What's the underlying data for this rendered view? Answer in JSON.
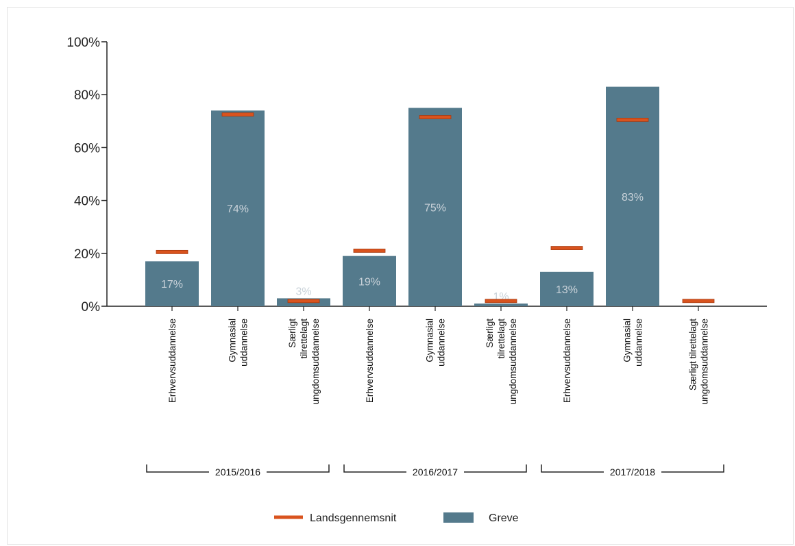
{
  "chart_data": {
    "type": "bar",
    "title": "",
    "xlabel": "",
    "ylabel": "",
    "ylim": [
      0,
      100
    ],
    "y_ticks": [
      "0%",
      "20%",
      "40%",
      "60%",
      "80%",
      "100%"
    ],
    "groups": [
      {
        "label": "2015/2016",
        "categories": [
          {
            "label_lines": [
              "Erhvervsuddannelse"
            ],
            "greve": 17,
            "greve_label": "17%",
            "landsgennemsnit": 20.5
          },
          {
            "label_lines": [
              "Gymnasial",
              "uddannelse"
            ],
            "greve": 74,
            "greve_label": "74%",
            "landsgennemsnit": 72.5
          },
          {
            "label_lines": [
              "Særligt",
              "tilrettelagt",
              "ungdomsuddannelse"
            ],
            "greve": 3,
            "greve_label": "3%",
            "landsgennemsnit": 2
          }
        ]
      },
      {
        "label": "2016/2017",
        "categories": [
          {
            "label_lines": [
              "Erhvervsuddannelse"
            ],
            "greve": 19,
            "greve_label": "19%",
            "landsgennemsnit": 21
          },
          {
            "label_lines": [
              "Gymnasial",
              "uddannelse"
            ],
            "greve": 75,
            "greve_label": "75%",
            "landsgennemsnit": 71.5
          },
          {
            "label_lines": [
              "Særligt",
              "tilrettelagt",
              "ungdomsuddannelse"
            ],
            "greve": 1,
            "greve_label": "1%",
            "landsgennemsnit": 2
          }
        ]
      },
      {
        "label": "2017/2018",
        "categories": [
          {
            "label_lines": [
              "Erhvervsuddannelse"
            ],
            "greve": 13,
            "greve_label": "13%",
            "landsgennemsnit": 22
          },
          {
            "label_lines": [
              "Gymnasial",
              "uddannelse"
            ],
            "greve": 83,
            "greve_label": "83%",
            "landsgennemsnit": 70.5
          },
          {
            "label_lines": [
              "Særligt tilrettelagt",
              "ungdomsuddannelse"
            ],
            "greve": null,
            "greve_label": "",
            "landsgennemsnit": 2
          }
        ]
      }
    ],
    "series": [
      {
        "name": "Landsgennemsnit",
        "kind": "marker",
        "color": "#d9531e"
      },
      {
        "name": "Greve",
        "kind": "bar",
        "color": "#547a8c"
      }
    ],
    "legend_position": "bottom-center"
  }
}
